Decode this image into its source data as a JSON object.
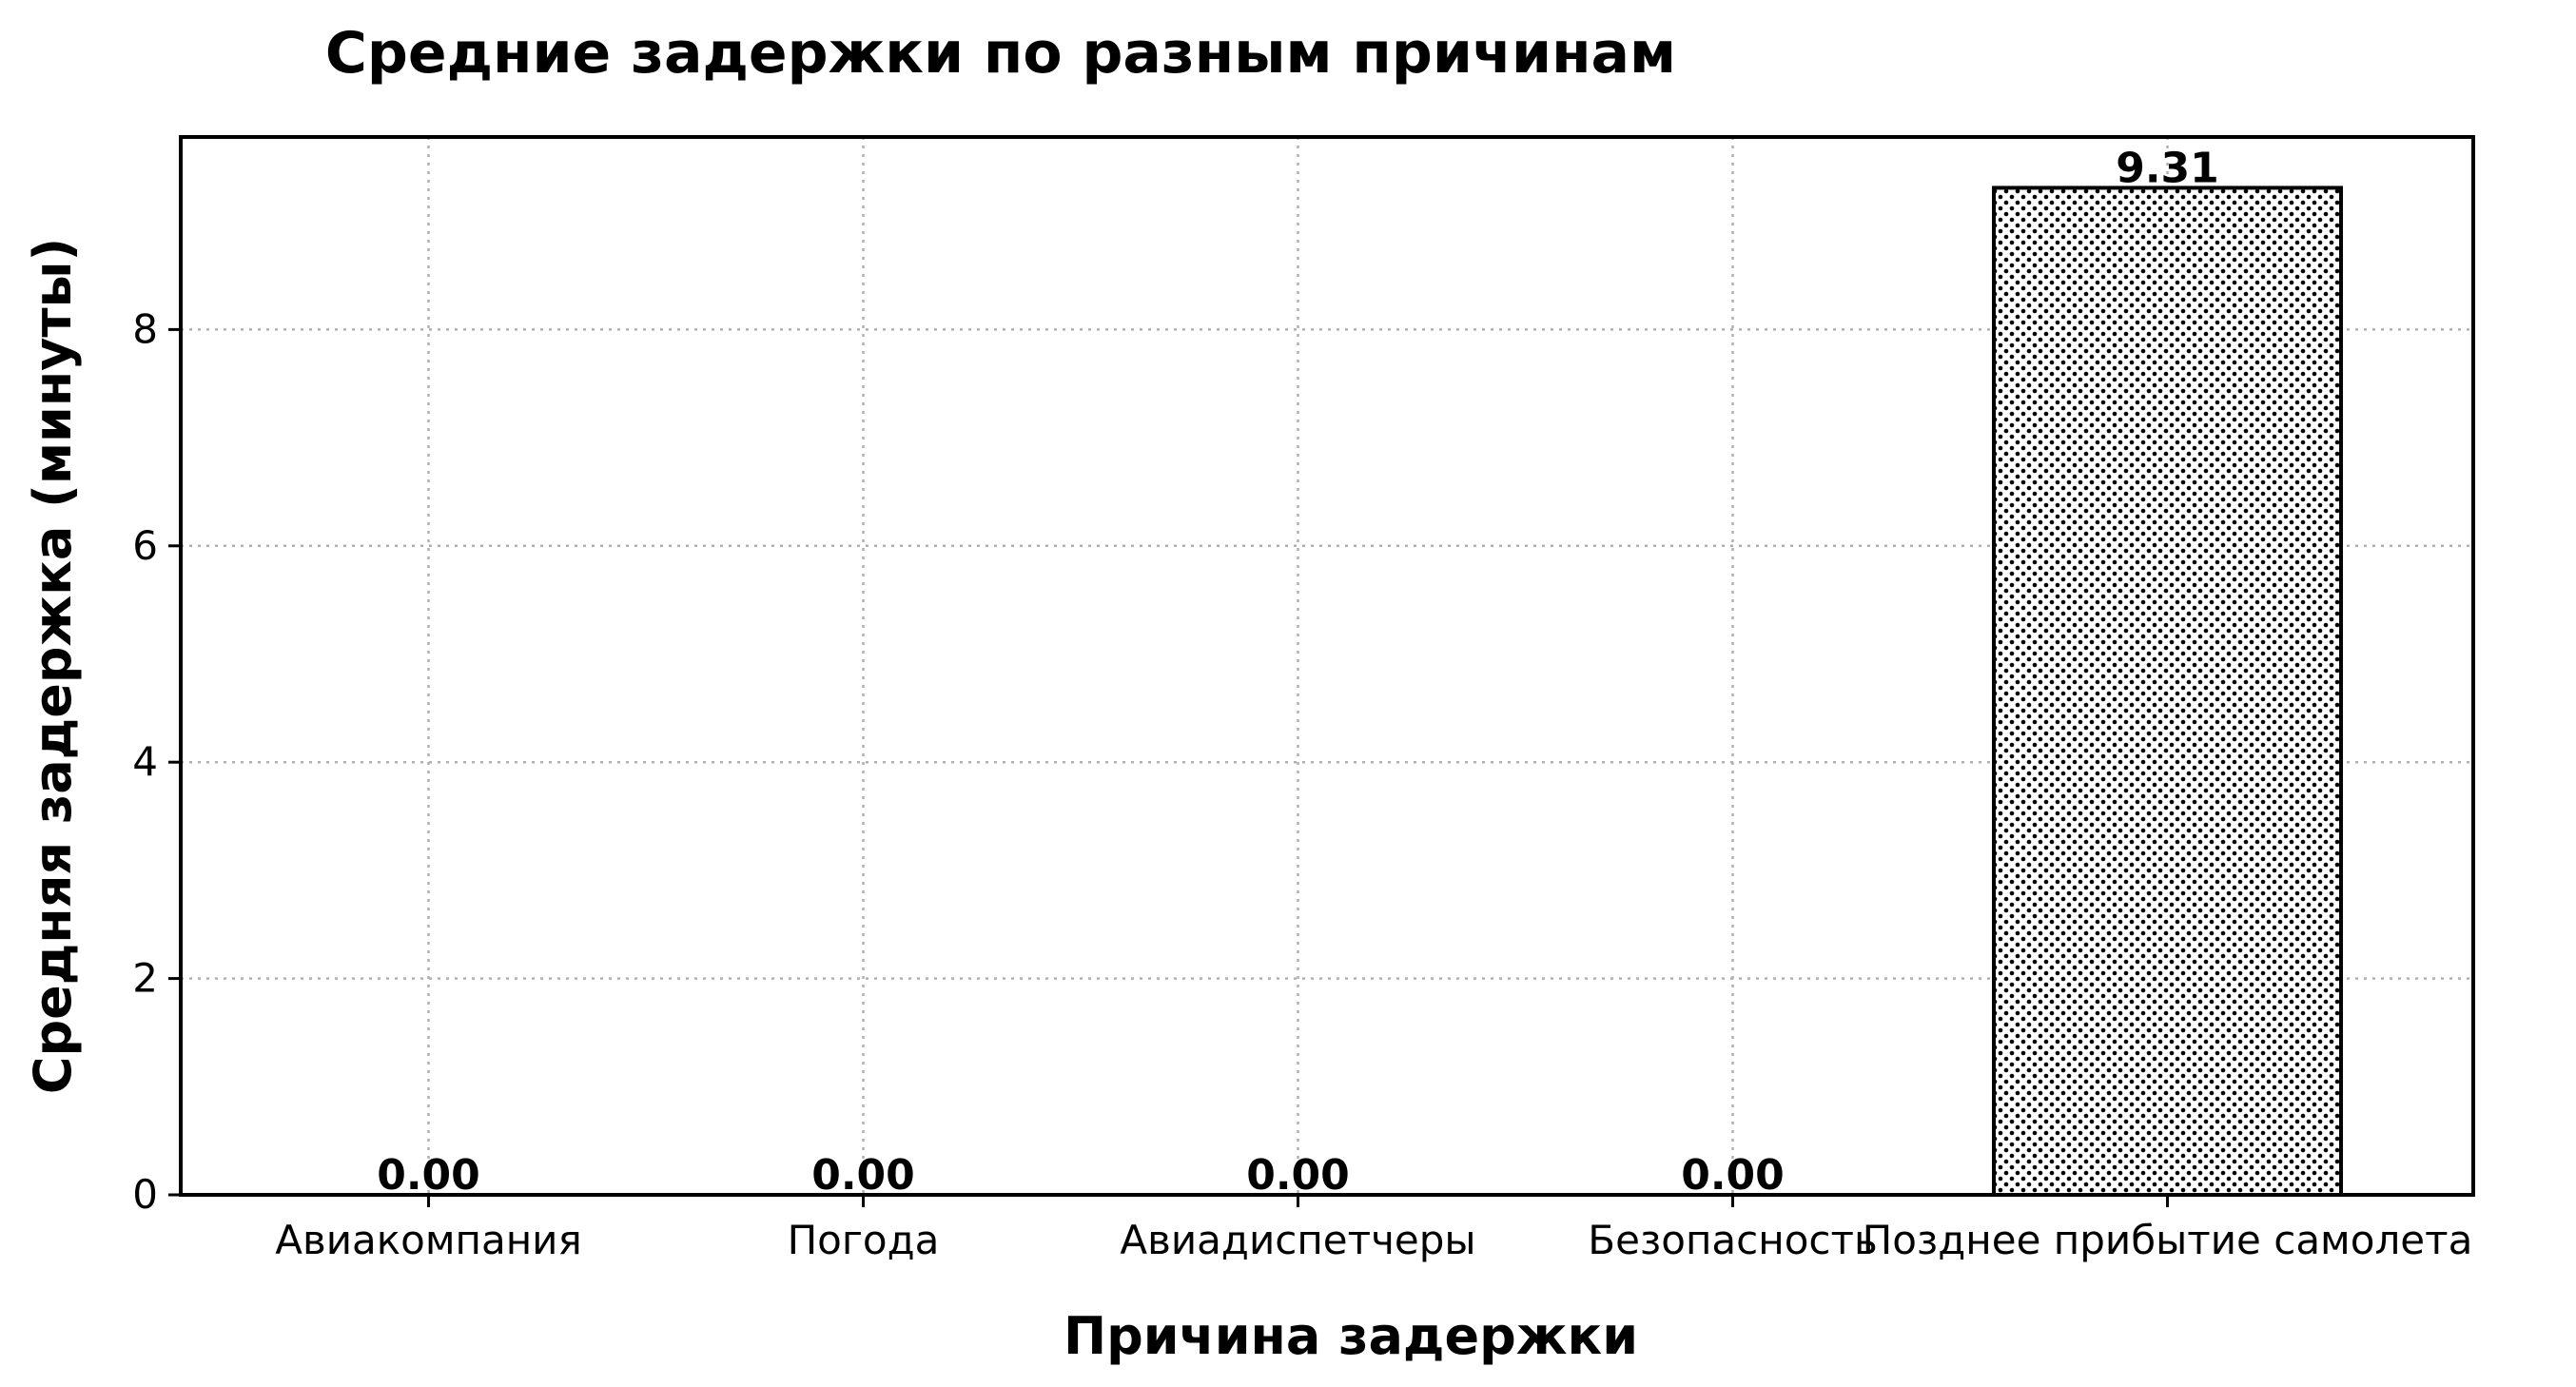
{
  "chart_data": {
    "type": "bar",
    "title": "Средние задержки по разным причинам",
    "xlabel": "Причина задержки",
    "ylabel": "Средняя задержка (минуты)",
    "categories": [
      "Авиакомпания",
      "Погода",
      "Авиадиспетчеры",
      "Безопасность",
      "Позднее прибытие самолета"
    ],
    "values": [
      0.0,
      0.0,
      0.0,
      0.0,
      9.31
    ],
    "value_labels": [
      "0.00",
      "0.00",
      "0.00",
      "0.00",
      "9.31"
    ],
    "ylim": [
      0,
      9.78
    ],
    "yticks": [
      0,
      2,
      4,
      6,
      8
    ],
    "grid": true,
    "grid_style": "dotted",
    "bar_pattern": "dots",
    "colors": {
      "bar_fill": "#ffffff",
      "bar_edge": "#000000",
      "grid": "#b0b0b0",
      "text": "#000000"
    }
  }
}
